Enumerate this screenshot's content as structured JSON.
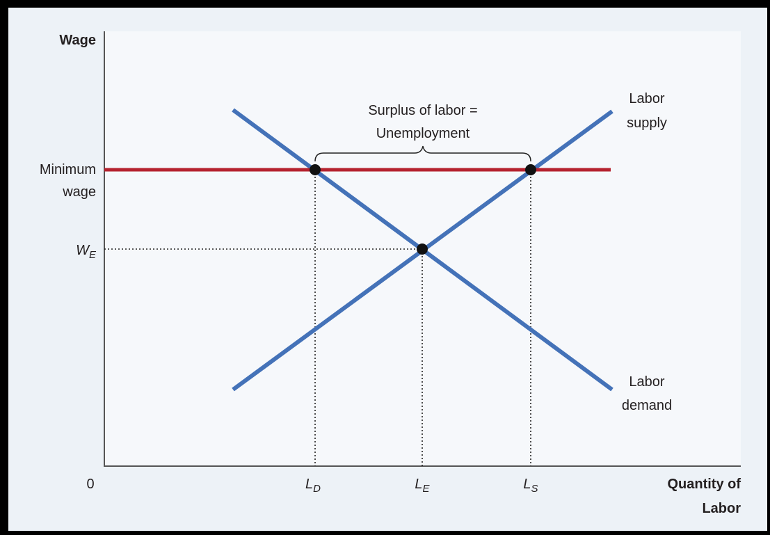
{
  "axes": {
    "y_label": "Wage",
    "x_label": [
      "Quantity of",
      "Labor"
    ],
    "origin": "0"
  },
  "curves": {
    "supply": [
      "Labor",
      "supply"
    ],
    "demand": [
      "Labor",
      "demand"
    ]
  },
  "minimum_wage": [
    "Minimum",
    "wage"
  ],
  "equilibrium_wage": {
    "letter": "W",
    "subscript": "E"
  },
  "quantities": [
    {
      "letter": "L",
      "subscript": "D"
    },
    {
      "letter": "L",
      "subscript": "E"
    },
    {
      "letter": "L",
      "subscript": "S"
    }
  ],
  "annotation": [
    "Surplus of labor =",
    "Unemployment"
  ]
}
